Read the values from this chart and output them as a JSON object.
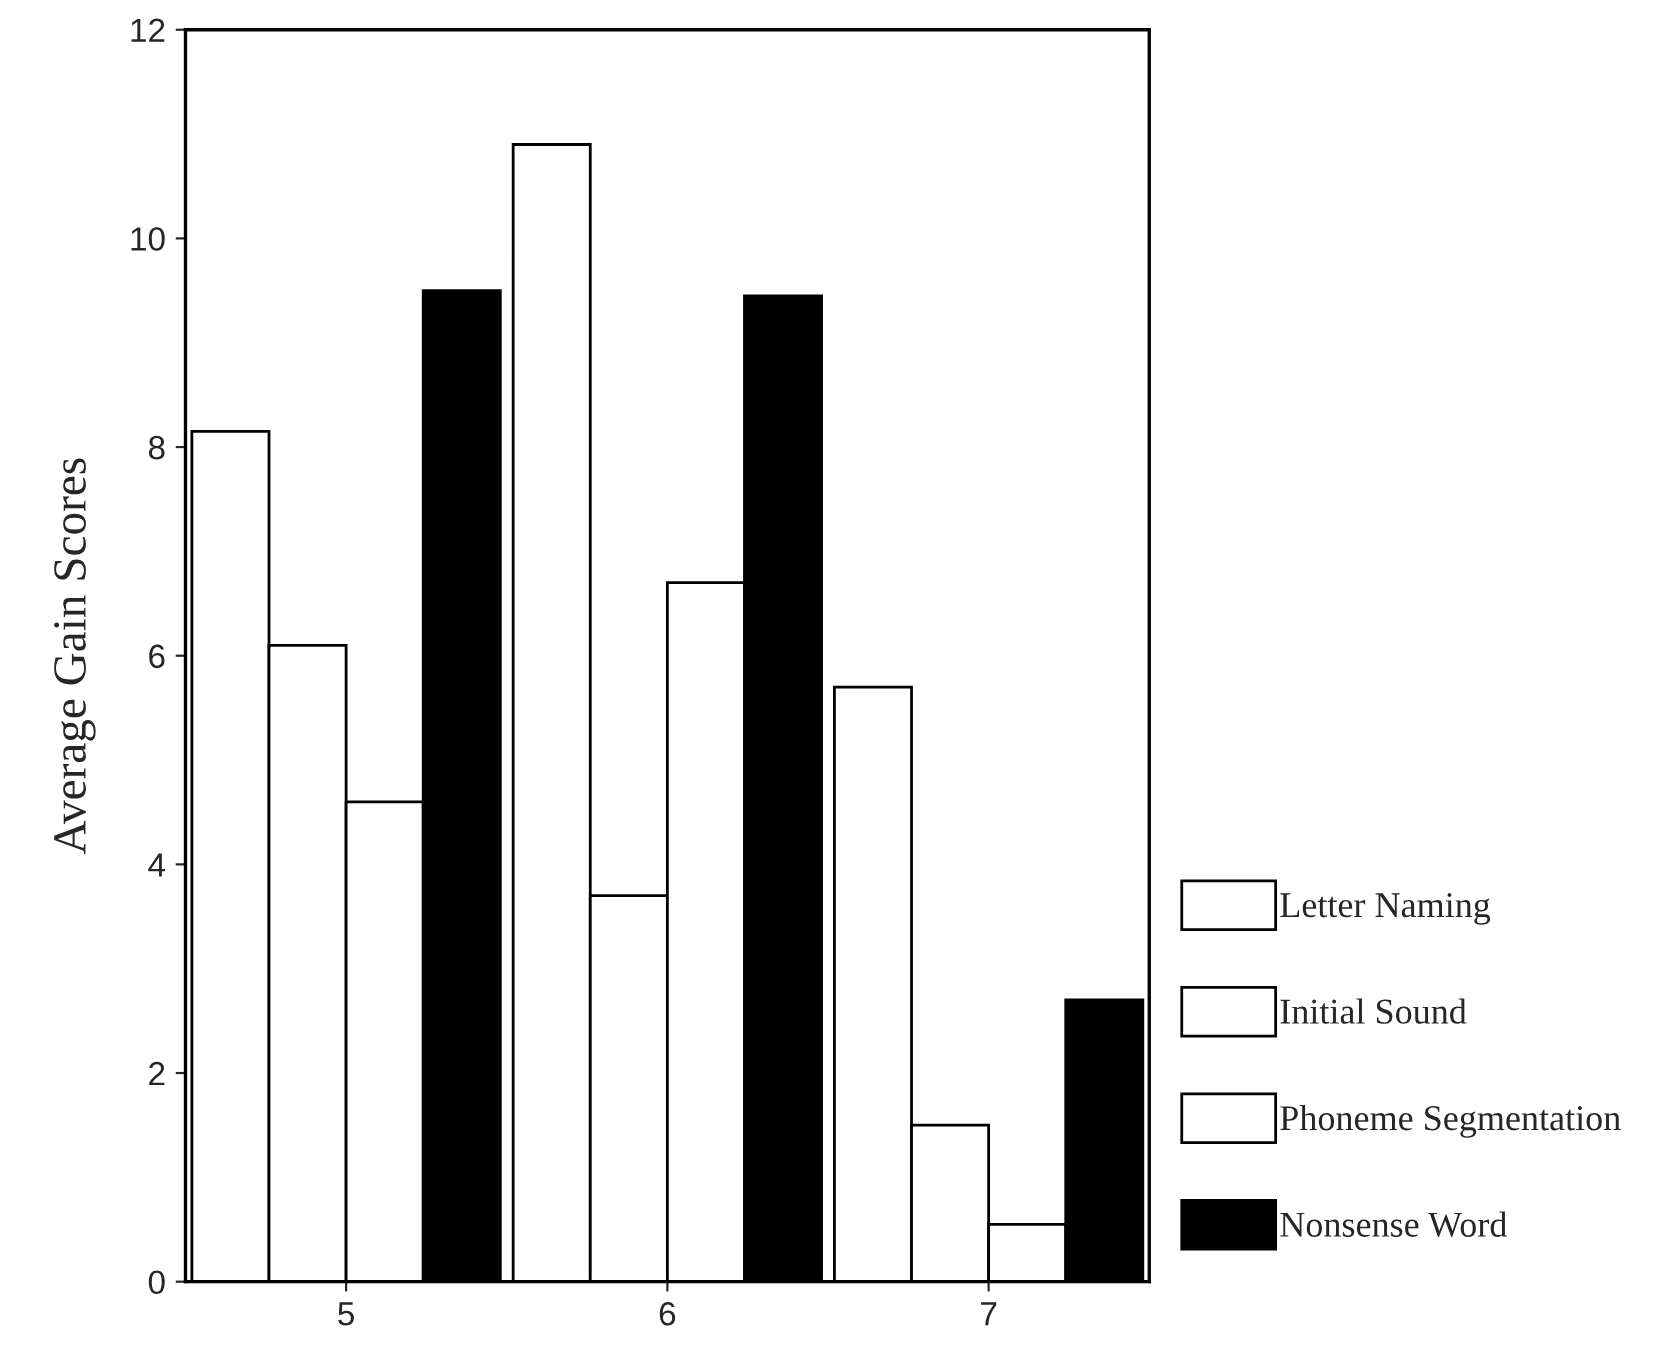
{
  "chart_data": {
    "type": "bar",
    "ylabel": "Average Gain Scores",
    "categories": [
      "5",
      "6",
      "7"
    ],
    "series": [
      {
        "name": "Letter Naming",
        "color": "#ffffff",
        "values": [
          8.15,
          10.9,
          5.7
        ]
      },
      {
        "name": "Initial Sound",
        "color": "#ffffff",
        "values": [
          6.1,
          3.7,
          1.5
        ]
      },
      {
        "name": "Phoneme Segmentation",
        "color": "#ffffff",
        "values": [
          4.6,
          6.7,
          0.55
        ]
      },
      {
        "name": "Nonsense Word",
        "color": "#000000",
        "values": [
          9.5,
          9.45,
          2.7
        ]
      }
    ],
    "ylim": [
      0,
      12
    ],
    "yticks": [
      0,
      2,
      4,
      6,
      8,
      10,
      12
    ],
    "grid": false,
    "legend": "right"
  }
}
